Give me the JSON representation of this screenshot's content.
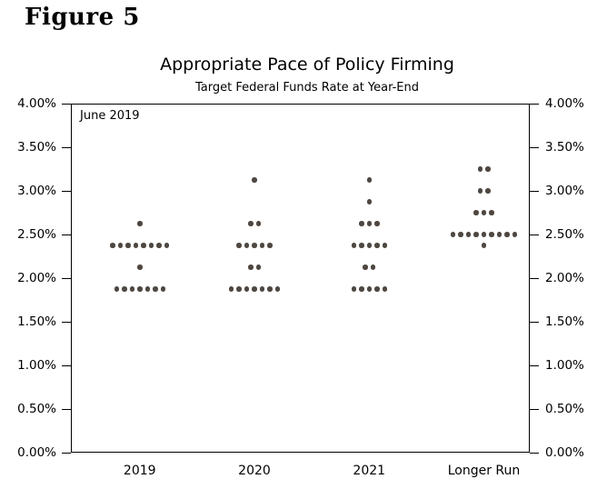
{
  "figure": {
    "label": "Figure 5"
  },
  "chart_data": {
    "type": "scatter",
    "title": "Appropriate Pace of Policy Firming",
    "subtitle": "Target Federal Funds Rate at Year-End",
    "annotation": "June 2019",
    "xlabel": "",
    "ylabel": "",
    "ylim": [
      0,
      4
    ],
    "ytick_step": 0.5,
    "ytick_labels": [
      "0.00%",
      "0.50%",
      "1.00%",
      "1.50%",
      "2.00%",
      "2.50%",
      "3.00%",
      "3.50%",
      "4.00%"
    ],
    "y_axis_sides": [
      "left",
      "right"
    ],
    "grid": false,
    "legend": "none",
    "dot_color": "#4e4741",
    "categories": [
      "2019",
      "2020",
      "2021",
      "Longer Run"
    ],
    "series": [
      {
        "category": "2019",
        "dots": [
          {
            "rate": 2.625,
            "count": 1
          },
          {
            "rate": 2.375,
            "count": 8
          },
          {
            "rate": 2.125,
            "count": 1
          },
          {
            "rate": 1.875,
            "count": 7
          }
        ]
      },
      {
        "category": "2020",
        "dots": [
          {
            "rate": 3.125,
            "count": 1
          },
          {
            "rate": 2.625,
            "count": 2
          },
          {
            "rate": 2.375,
            "count": 5
          },
          {
            "rate": 2.125,
            "count": 2
          },
          {
            "rate": 1.875,
            "count": 7
          }
        ]
      },
      {
        "category": "2021",
        "dots": [
          {
            "rate": 3.125,
            "count": 1
          },
          {
            "rate": 2.875,
            "count": 1
          },
          {
            "rate": 2.625,
            "count": 3
          },
          {
            "rate": 2.375,
            "count": 5
          },
          {
            "rate": 2.125,
            "count": 2
          },
          {
            "rate": 1.875,
            "count": 5
          }
        ]
      },
      {
        "category": "Longer Run",
        "dots": [
          {
            "rate": 3.25,
            "count": 2
          },
          {
            "rate": 3.0,
            "count": 2
          },
          {
            "rate": 2.75,
            "count": 3
          },
          {
            "rate": 2.5,
            "count": 9
          },
          {
            "rate": 2.375,
            "count": 1
          }
        ]
      }
    ],
    "column_center_fracs": [
      0.15,
      0.4,
      0.65,
      0.9
    ]
  }
}
